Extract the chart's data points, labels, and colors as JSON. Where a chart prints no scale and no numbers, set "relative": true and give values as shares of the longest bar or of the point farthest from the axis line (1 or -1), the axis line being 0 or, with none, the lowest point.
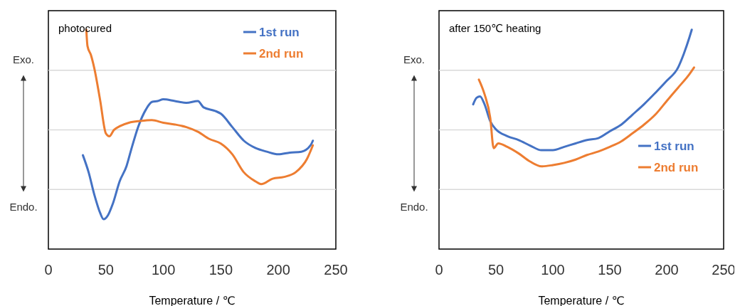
{
  "chart_data": [
    {
      "type": "line",
      "title": "photocured",
      "xlabel": "Temperature / ℃",
      "relative": true,
      "grid": "y",
      "legend": "top right",
      "xlim": [
        0,
        250
      ],
      "xticks": [
        0,
        50,
        100,
        150,
        200,
        250
      ],
      "annotations": [
        "Exo.",
        "Endo."
      ],
      "series": [
        {
          "name": "1st run",
          "color": "#4472c4",
          "x": [
            30,
            35,
            40,
            45,
            48,
            52,
            56,
            62,
            68,
            72,
            78,
            85,
            90,
            95,
            100,
            110,
            120,
            130,
            135,
            145,
            150,
            160,
            170,
            180,
            190,
            200,
            210,
            220,
            228,
            230
          ],
          "values": [
            0.428,
            0.35,
            0.247,
            0.165,
            0.136,
            0.156,
            0.206,
            0.309,
            0.379,
            0.453,
            0.556,
            0.638,
            0.671,
            0.675,
            0.683,
            0.675,
            0.667,
            0.675,
            0.646,
            0.63,
            0.617,
            0.556,
            0.494,
            0.461,
            0.444,
            0.432,
            0.44,
            0.444,
            0.473,
            0.494
          ]
        },
        {
          "name": "2nd run",
          "color": "#ed7d31",
          "x": [
            33,
            34,
            37,
            40,
            45,
            50,
            53,
            57,
            62,
            70,
            80,
            90,
            100,
            110,
            120,
            130,
            140,
            150,
            160,
            170,
            180,
            185,
            195,
            205,
            215,
            225,
            230
          ],
          "values": [
            1,
            0.926,
            0.885,
            0.823,
            0.679,
            0.527,
            0.514,
            0.543,
            0.56,
            0.576,
            0.584,
            0.588,
            0.576,
            0.568,
            0.556,
            0.535,
            0.502,
            0.481,
            0.432,
            0.35,
            0.309,
            0.296,
            0.321,
            0.329,
            0.35,
            0.412,
            0.473
          ]
        }
      ]
    },
    {
      "type": "line",
      "title": "after 150℃ heating",
      "xlabel": "Temperature / ℃",
      "relative": true,
      "grid": "y",
      "legend": "right",
      "xlim": [
        0,
        250
      ],
      "xticks": [
        0,
        50,
        100,
        150,
        200,
        250
      ],
      "annotations": [
        "Exo.",
        "Endo."
      ],
      "series": [
        {
          "name": "1st run",
          "color": "#4472c4",
          "x": [
            30,
            33,
            36,
            40,
            45,
            50,
            60,
            70,
            80,
            90,
            100,
            110,
            120,
            130,
            140,
            150,
            160,
            170,
            180,
            190,
            200,
            210,
            215,
            220,
            222
          ],
          "values": [
            0.66,
            0.69,
            0.696,
            0.66,
            0.583,
            0.546,
            0.515,
            0.497,
            0.472,
            0.451,
            0.451,
            0.466,
            0.482,
            0.497,
            0.506,
            0.537,
            0.567,
            0.613,
            0.66,
            0.712,
            0.767,
            0.828,
            0.89,
            0.966,
            1
          ]
        },
        {
          "name": "2nd run",
          "color": "#ed7d31",
          "x": [
            35,
            40,
            45,
            48,
            52,
            60,
            70,
            80,
            90,
            100,
            110,
            120,
            130,
            140,
            150,
            160,
            170,
            180,
            190,
            200,
            210,
            220,
            224
          ],
          "values": [
            0.773,
            0.706,
            0.598,
            0.46,
            0.482,
            0.466,
            0.436,
            0.399,
            0.377,
            0.383,
            0.393,
            0.408,
            0.429,
            0.445,
            0.466,
            0.491,
            0.528,
            0.567,
            0.613,
            0.675,
            0.736,
            0.798,
            0.828
          ]
        }
      ]
    }
  ]
}
